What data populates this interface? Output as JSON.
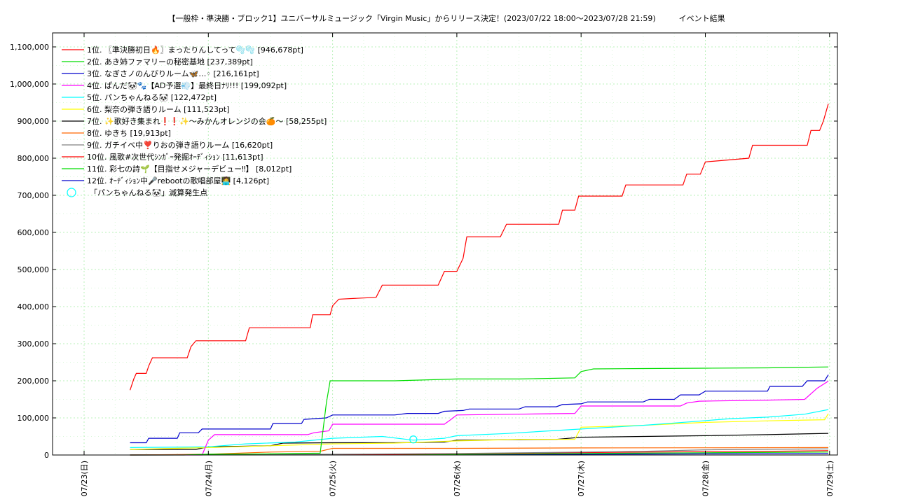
{
  "chart_data": {
    "type": "line",
    "title": "【一般枠・準決勝・ブロック1】ユニバーサルミュージック「Virgin Music」からリリース決定！(2023/07/22 18:00～2023/07/28 21:59)　　　イベント結果",
    "x_ticks": [
      "07/23(日)",
      "07/24(月)",
      "07/25(火)",
      "07/26(水)",
      "07/27(木)",
      "07/28(金)",
      "07/29(土)"
    ],
    "y_ticks": [
      "0",
      "100,000",
      "200,000",
      "300,000",
      "400,000",
      "500,000",
      "600,000",
      "700,000",
      "800,000",
      "900,000",
      "1,000,000",
      "1,100,000"
    ],
    "x_range_days_since_0723": [
      -0.25,
      6.05
    ],
    "ylim": [
      0,
      1140000
    ],
    "grid": true,
    "legend_position": "top-left",
    "series": [
      {
        "name": "1位. 〖準決勝初日🔥〗まったりんしてって🫧🫧 [946,678pt]",
        "color": "#ff0000",
        "points": [
          [
            0.37,
            175000
          ],
          [
            0.4,
            205000
          ],
          [
            0.42,
            220000
          ],
          [
            0.5,
            220000
          ],
          [
            0.52,
            240000
          ],
          [
            0.55,
            262000
          ],
          [
            0.83,
            262000
          ],
          [
            0.86,
            292000
          ],
          [
            0.9,
            308000
          ],
          [
            1.3,
            308000
          ],
          [
            1.33,
            343000
          ],
          [
            1.82,
            343000
          ],
          [
            1.84,
            378000
          ],
          [
            1.98,
            378000
          ],
          [
            2.0,
            402000
          ],
          [
            2.05,
            420000
          ],
          [
            2.35,
            425000
          ],
          [
            2.4,
            458000
          ],
          [
            2.85,
            458000
          ],
          [
            2.9,
            495000
          ],
          [
            3.0,
            495000
          ],
          [
            3.05,
            530000
          ],
          [
            3.08,
            588000
          ],
          [
            3.35,
            588000
          ],
          [
            3.4,
            622000
          ],
          [
            3.82,
            622000
          ],
          [
            3.85,
            660000
          ],
          [
            3.95,
            660000
          ],
          [
            3.98,
            698000
          ],
          [
            4.33,
            698000
          ],
          [
            4.36,
            728000
          ],
          [
            4.82,
            728000
          ],
          [
            4.85,
            757000
          ],
          [
            4.96,
            757000
          ],
          [
            5.0,
            790000
          ],
          [
            5.35,
            800000
          ],
          [
            5.38,
            835000
          ],
          [
            5.82,
            835000
          ],
          [
            5.85,
            875000
          ],
          [
            5.92,
            875000
          ],
          [
            5.95,
            900000
          ],
          [
            5.99,
            946678
          ]
        ]
      },
      {
        "name": "2位. あき姉ファマリーの秘密基地 [237,389pt]",
        "color": "#00dd00",
        "points": [
          [
            0.37,
            0
          ],
          [
            0.8,
            0
          ],
          [
            1.0,
            2000
          ],
          [
            1.5,
            3000
          ],
          [
            1.9,
            5000
          ],
          [
            1.95,
            140000
          ],
          [
            1.98,
            200000
          ],
          [
            2.5,
            200000
          ],
          [
            3.0,
            205000
          ],
          [
            3.5,
            205000
          ],
          [
            3.95,
            208000
          ],
          [
            4.0,
            225000
          ],
          [
            4.1,
            232000
          ],
          [
            4.5,
            233000
          ],
          [
            5.0,
            234000
          ],
          [
            5.5,
            235000
          ],
          [
            5.99,
            237389
          ]
        ]
      },
      {
        "name": "3位. なぎさノのんびりルーム🦋…◦ [216,161pt]",
        "color": "#0000cc",
        "points": [
          [
            0.37,
            33000
          ],
          [
            0.5,
            33000
          ],
          [
            0.52,
            45000
          ],
          [
            0.75,
            45000
          ],
          [
            0.77,
            60000
          ],
          [
            0.92,
            60000
          ],
          [
            0.95,
            70000
          ],
          [
            1.5,
            70000
          ],
          [
            1.52,
            85000
          ],
          [
            1.75,
            85000
          ],
          [
            1.77,
            96000
          ],
          [
            1.95,
            100000
          ],
          [
            2.0,
            108000
          ],
          [
            2.5,
            108000
          ],
          [
            2.6,
            112000
          ],
          [
            2.85,
            112000
          ],
          [
            2.9,
            118000
          ],
          [
            3.05,
            120000
          ],
          [
            3.1,
            124000
          ],
          [
            3.5,
            124000
          ],
          [
            3.55,
            130000
          ],
          [
            3.8,
            130000
          ],
          [
            3.85,
            136000
          ],
          [
            4.0,
            138000
          ],
          [
            4.05,
            143000
          ],
          [
            4.5,
            143000
          ],
          [
            4.55,
            150000
          ],
          [
            4.75,
            150000
          ],
          [
            4.8,
            162000
          ],
          [
            4.95,
            162000
          ],
          [
            5.0,
            172000
          ],
          [
            5.5,
            172000
          ],
          [
            5.52,
            185000
          ],
          [
            5.78,
            185000
          ],
          [
            5.82,
            200000
          ],
          [
            5.96,
            200000
          ],
          [
            5.99,
            216161
          ]
        ]
      },
      {
        "name": "4位. ぱんだ🐼🐾【AD予選💨】最終日ﾅﾘ!!! [199,092pt]",
        "color": "#ff00ff",
        "points": [
          [
            0.37,
            0
          ],
          [
            0.95,
            0
          ],
          [
            1.0,
            40000
          ],
          [
            1.05,
            55000
          ],
          [
            1.8,
            55000
          ],
          [
            1.85,
            60000
          ],
          [
            1.97,
            65000
          ],
          [
            2.0,
            83000
          ],
          [
            2.9,
            83000
          ],
          [
            2.95,
            95000
          ],
          [
            3.0,
            108000
          ],
          [
            3.5,
            110000
          ],
          [
            3.95,
            112000
          ],
          [
            4.0,
            132000
          ],
          [
            4.8,
            132000
          ],
          [
            4.85,
            140000
          ],
          [
            4.95,
            145000
          ],
          [
            5.5,
            148000
          ],
          [
            5.8,
            150000
          ],
          [
            5.9,
            180000
          ],
          [
            5.99,
            199092
          ]
        ]
      },
      {
        "name": "5位. パンちゃんねる🐼 [122,472pt]",
        "color": "#00ffff",
        "points": [
          [
            0.37,
            20000
          ],
          [
            1.0,
            22000
          ],
          [
            1.3,
            30000
          ],
          [
            1.7,
            35000
          ],
          [
            2.0,
            45000
          ],
          [
            2.4,
            50000
          ],
          [
            2.65,
            40000
          ],
          [
            2.9,
            45000
          ],
          [
            3.0,
            52000
          ],
          [
            3.4,
            58000
          ],
          [
            3.75,
            65000
          ],
          [
            4.0,
            70000
          ],
          [
            4.5,
            80000
          ],
          [
            4.9,
            90000
          ],
          [
            5.2,
            98000
          ],
          [
            5.5,
            102000
          ],
          [
            5.8,
            110000
          ],
          [
            5.99,
            122472
          ]
        ]
      },
      {
        "name": "6位. 梨奈の弾き語りルーム [111,523pt]",
        "color": "#ffff00",
        "points": [
          [
            0.37,
            15000
          ],
          [
            1.0,
            20000
          ],
          [
            1.5,
            25000
          ],
          [
            2.0,
            30000
          ],
          [
            2.5,
            32000
          ],
          [
            3.0,
            38000
          ],
          [
            3.5,
            42000
          ],
          [
            3.95,
            42000
          ],
          [
            4.0,
            75000
          ],
          [
            4.5,
            80000
          ],
          [
            5.0,
            88000
          ],
          [
            5.5,
            92000
          ],
          [
            5.96,
            95000
          ],
          [
            5.99,
            111523
          ]
        ]
      },
      {
        "name": "7位. ✨歌好き集まれ❗❗✨〜みかんオレンジの会🍊〜 [58,255pt]",
        "color": "#000000",
        "points": [
          [
            0.37,
            15000
          ],
          [
            0.9,
            15000
          ],
          [
            1.0,
            22000
          ],
          [
            1.5,
            25000
          ],
          [
            1.6,
            32000
          ],
          [
            2.0,
            33000
          ],
          [
            2.5,
            33000
          ],
          [
            2.9,
            35000
          ],
          [
            3.0,
            40000
          ],
          [
            3.8,
            42000
          ],
          [
            4.0,
            48000
          ],
          [
            4.5,
            50000
          ],
          [
            5.0,
            52000
          ],
          [
            5.5,
            55000
          ],
          [
            5.99,
            58255
          ]
        ]
      },
      {
        "name": "8位. ゆきち [19,913pt]",
        "color": "#ff6600",
        "points": [
          [
            0.37,
            0
          ],
          [
            1.0,
            2000
          ],
          [
            1.5,
            8000
          ],
          [
            1.9,
            10000
          ],
          [
            2.0,
            18000
          ],
          [
            3.0,
            18000
          ],
          [
            4.0,
            19000
          ],
          [
            5.0,
            19500
          ],
          [
            5.99,
            19913
          ]
        ]
      },
      {
        "name": "9位. ガチイベ中❣️りおの弾き語りルーム [16,620pt]",
        "color": "#808080",
        "points": [
          [
            0.37,
            0
          ],
          [
            1.0,
            1000
          ],
          [
            2.0,
            2000
          ],
          [
            3.0,
            4000
          ],
          [
            4.0,
            8000
          ],
          [
            4.5,
            10000
          ],
          [
            5.0,
            14000
          ],
          [
            5.99,
            16620
          ]
        ]
      },
      {
        "name": "10位. 風歌#次世代ｼﾝｶﾞｰ発掘ｵｰﾃﾞｨｼｮﾝ [11,613pt]",
        "color": "#ff0000",
        "points": [
          [
            0.37,
            0
          ],
          [
            1.5,
            500
          ],
          [
            2.5,
            2000
          ],
          [
            3.5,
            5000
          ],
          [
            4.5,
            8000
          ],
          [
            5.5,
            10000
          ],
          [
            5.99,
            11613
          ]
        ]
      },
      {
        "name": "11位. 彩七の詩🌱【目指せメジャーデビュー‼︎】 [8,012pt]",
        "color": "#00dd00",
        "points": [
          [
            0.37,
            0
          ],
          [
            2.0,
            500
          ],
          [
            3.0,
            2000
          ],
          [
            4.0,
            4000
          ],
          [
            5.0,
            6000
          ],
          [
            5.99,
            8012
          ]
        ]
      },
      {
        "name": "12位. ｵｰﾃﾞｨｼｮﾝ中🎤rebootの歌唱部屋🧑‍💻 [4,126pt]",
        "color": "#0000cc",
        "points": [
          [
            0.37,
            0
          ],
          [
            2.0,
            500
          ],
          [
            3.0,
            1000
          ],
          [
            4.0,
            2000
          ],
          [
            5.0,
            3000
          ],
          [
            5.99,
            4126
          ]
        ]
      }
    ],
    "markers": {
      "name": "「パンちゃんねる🐼」減算発生点",
      "color": "#00ffff",
      "points": [
        [
          2.65,
          42000
        ]
      ]
    }
  }
}
